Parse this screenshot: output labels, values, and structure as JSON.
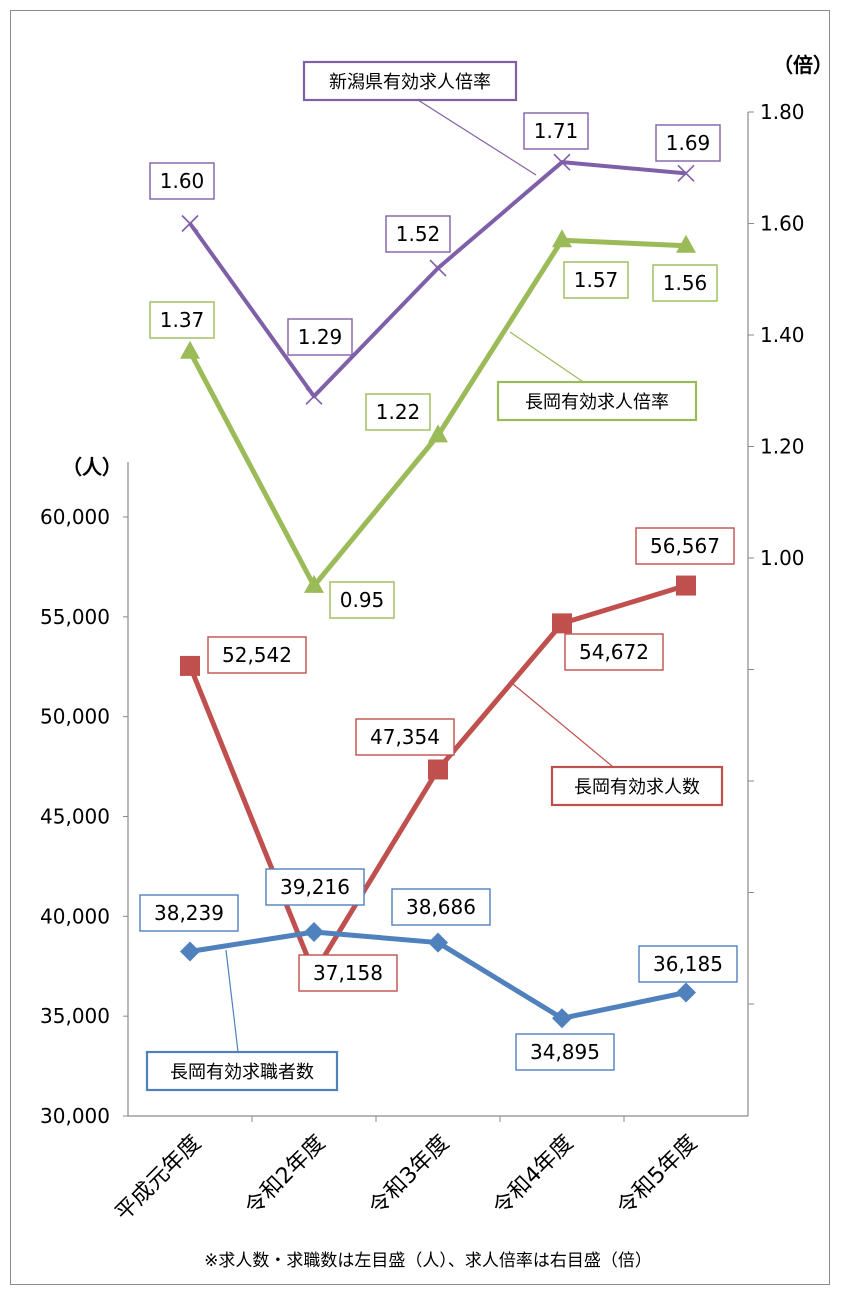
{
  "chart_data": {
    "type": "line",
    "categories": [
      "平成元年度",
      "令和2年度",
      "令和3年度",
      "令和4年度",
      "令和5年度"
    ],
    "left_axis": {
      "unit_label": "（人）",
      "ylim": [
        30000,
        60000
      ],
      "ticks": [
        "30,000",
        "35,000",
        "40,000",
        "45,000",
        "50,000",
        "55,000",
        "60,000"
      ]
    },
    "right_axis": {
      "unit_label": "（倍）",
      "ylim": [
        0.0,
        1.8
      ],
      "ticks": [
        "1.00",
        "1.20",
        "1.40",
        "1.60",
        "1.80"
      ]
    },
    "series": [
      {
        "name": "新潟県有効求人倍率",
        "axis": "right",
        "color": "#7f5fa8",
        "marker": "x",
        "values": [
          1.6,
          1.29,
          1.52,
          1.71,
          1.69
        ],
        "labels": [
          "1.60",
          "1.29",
          "1.52",
          "1.71",
          "1.69"
        ]
      },
      {
        "name": "長岡有効求人倍率",
        "axis": "right",
        "color": "#9bbb59",
        "marker": "triangle",
        "values": [
          1.37,
          0.95,
          1.22,
          1.57,
          1.56
        ],
        "labels": [
          "1.37",
          "0.95",
          "1.22",
          "1.57",
          "1.56"
        ]
      },
      {
        "name": "長岡有効求人数",
        "axis": "left",
        "color": "#c0504d",
        "marker": "square",
        "values": [
          52542,
          37158,
          47354,
          54672,
          56567
        ],
        "labels": [
          "52,542",
          "37,158",
          "47,354",
          "54,672",
          "56,567"
        ]
      },
      {
        "name": "長岡有効求職者数",
        "axis": "left",
        "color": "#4f81bd",
        "marker": "diamond",
        "values": [
          38239,
          39216,
          38686,
          34895,
          36185
        ],
        "labels": [
          "38,239",
          "39,216",
          "38,686",
          "34,895",
          "36,185"
        ]
      }
    ],
    "note": "※求人数・求職数は左目盛（人）、求人倍率は右目盛（倍）"
  }
}
